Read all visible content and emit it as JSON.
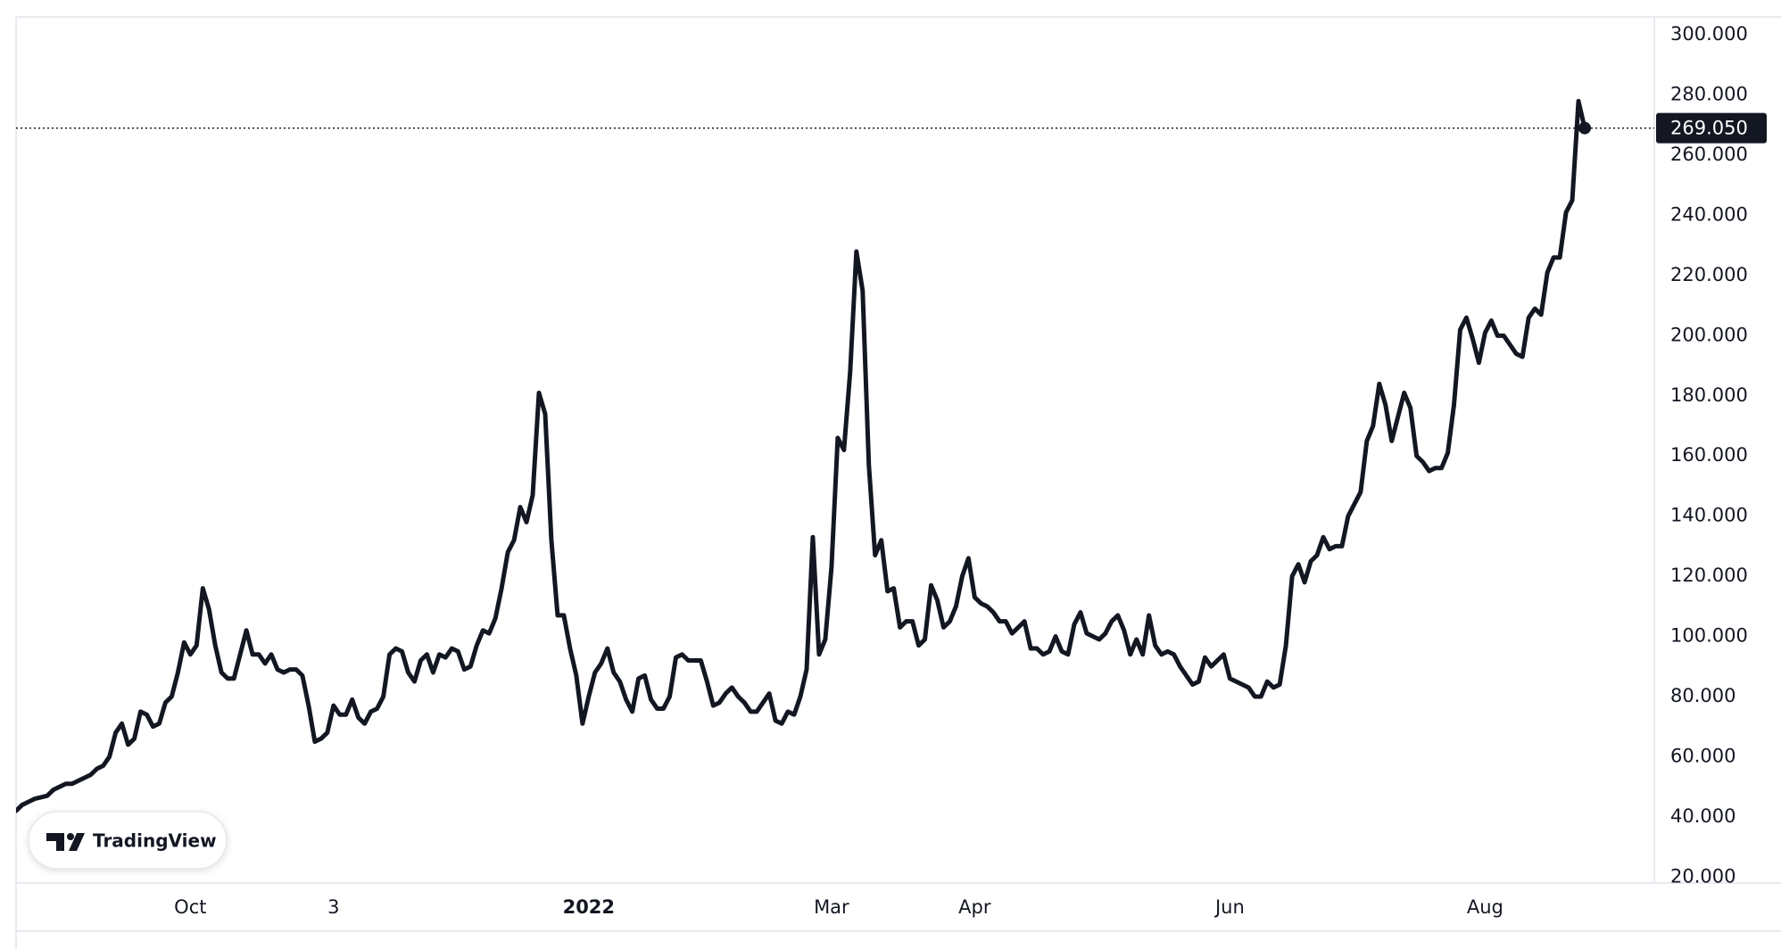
{
  "chart_data": {
    "type": "line",
    "color": "#131722",
    "grid": false,
    "watermark": "TradingView",
    "ylim": [
      18,
      306
    ],
    "yticks": [
      {
        "value": 20,
        "label": "20.000"
      },
      {
        "value": 40,
        "label": "40.000"
      },
      {
        "value": 60,
        "label": "60.000"
      },
      {
        "value": 80,
        "label": "80.000"
      },
      {
        "value": 100,
        "label": "100.000"
      },
      {
        "value": 120,
        "label": "120.000"
      },
      {
        "value": 140,
        "label": "140.000"
      },
      {
        "value": 160,
        "label": "160.000"
      },
      {
        "value": 180,
        "label": "180.000"
      },
      {
        "value": 200,
        "label": "200.000"
      },
      {
        "value": 220,
        "label": "220.000"
      },
      {
        "value": 240,
        "label": "240.000"
      },
      {
        "value": 260,
        "label": "260.000"
      },
      {
        "value": 280,
        "label": "280.000"
      },
      {
        "value": 300,
        "label": "300.000"
      }
    ],
    "last_price": {
      "value": 269.05,
      "label": "269.050"
    },
    "categories": [
      null,
      null,
      null,
      null,
      null,
      null,
      null,
      null,
      null,
      null,
      null,
      null,
      null,
      null,
      null,
      null,
      null,
      null,
      null,
      null,
      null,
      null,
      null,
      null,
      null,
      null,
      null,
      null,
      "Oct",
      null,
      null,
      null,
      null,
      null,
      null,
      null,
      null,
      null,
      null,
      null,
      null,
      null,
      null,
      null,
      null,
      null,
      null,
      null,
      null,
      null,
      null,
      "3",
      null,
      null,
      null,
      null,
      null,
      null,
      null,
      null,
      null,
      null,
      null,
      null,
      null,
      null,
      null,
      null,
      null,
      null,
      null,
      null,
      null,
      null,
      null,
      null,
      null,
      null,
      null,
      null,
      null,
      null,
      null,
      null,
      null,
      null,
      null,
      null,
      null,
      null,
      null,
      null,
      "2022",
      null,
      null,
      null,
      null,
      null,
      null,
      null,
      null,
      null,
      null,
      null,
      null,
      null,
      null,
      null,
      null,
      null,
      null,
      null,
      null,
      null,
      null,
      null,
      null,
      null,
      null,
      null,
      null,
      null,
      null,
      null,
      null,
      null,
      null,
      null,
      null,
      null,
      null,
      "Mar",
      null,
      null,
      null,
      null,
      null,
      null,
      null,
      null,
      null,
      null,
      null,
      null,
      null,
      null,
      null,
      null,
      null,
      null,
      null,
      null,
      null,
      null,
      "Apr",
      null,
      null,
      null,
      null,
      null,
      null,
      null,
      null,
      null,
      null,
      null,
      null,
      null,
      null,
      null,
      null,
      null,
      null,
      null,
      null,
      null,
      null,
      null,
      null,
      null,
      null,
      null,
      null,
      null,
      null,
      null,
      null,
      null,
      null,
      null,
      null,
      null,
      null,
      null,
      null,
      "Jun",
      null,
      null,
      null,
      null,
      null,
      null,
      null,
      null,
      null,
      null,
      null,
      null,
      null,
      null,
      null,
      null,
      null,
      null,
      null,
      null,
      null,
      null,
      null,
      null,
      null,
      null,
      null,
      null,
      null,
      null,
      null,
      null,
      null,
      null,
      null,
      null,
      null,
      null,
      null,
      null,
      "Aug",
      null,
      null,
      null,
      null,
      null,
      null,
      null,
      null,
      null,
      null,
      null,
      null,
      null,
      null,
      null,
      null
    ],
    "bold_categories": [
      "2022"
    ],
    "values": [
      42,
      44,
      45,
      46,
      46.5,
      47,
      49,
      50,
      51,
      51,
      52,
      53,
      54,
      56,
      57,
      60,
      68,
      71,
      64,
      66,
      75,
      74,
      70,
      71,
      78,
      80,
      88,
      98,
      94,
      97,
      116,
      109,
      97,
      88,
      86,
      86,
      94,
      102,
      94,
      94,
      91,
      94,
      89,
      88,
      89,
      89,
      87,
      77,
      65,
      66,
      68,
      77,
      74,
      74,
      79,
      73,
      71,
      75,
      76,
      80,
      94,
      96,
      95,
      88,
      85,
      92,
      94,
      88,
      94,
      93,
      96,
      95,
      89,
      90,
      97,
      102,
      101,
      106,
      116,
      128,
      132,
      143,
      138,
      147,
      181,
      174,
      132,
      107,
      107,
      96,
      87,
      71,
      80,
      88,
      91,
      96,
      88,
      85,
      79,
      75,
      86,
      87,
      79,
      76,
      76,
      80,
      93,
      94,
      92,
      92,
      92,
      85,
      77,
      78,
      81,
      83,
      80,
      78,
      75,
      75,
      78,
      81,
      72,
      71,
      75,
      74,
      80,
      89,
      133,
      94,
      99,
      123,
      166,
      162,
      188,
      228,
      215,
      157,
      127,
      132,
      115,
      116,
      103,
      105,
      105,
      97,
      99,
      117,
      112,
      103,
      105,
      110,
      120,
      126,
      113,
      111,
      110,
      108,
      105,
      105,
      101,
      103,
      105,
      96,
      96,
      94,
      95,
      100,
      95,
      94,
      104,
      108,
      101,
      100,
      99,
      101,
      105,
      107,
      102,
      94,
      99,
      94,
      107,
      97,
      94,
      95,
      94,
      90,
      87,
      84,
      85,
      93,
      90,
      92,
      94,
      86,
      85,
      84,
      83,
      80,
      80,
      85,
      83,
      84,
      97,
      120,
      124,
      118,
      125,
      127,
      133,
      129,
      130,
      130,
      140,
      144,
      148,
      165,
      170,
      184,
      177,
      165,
      173,
      181,
      176,
      160,
      158,
      155,
      156,
      156,
      161,
      177,
      202,
      206,
      199,
      191,
      201,
      205,
      200,
      200,
      197,
      194,
      193,
      206,
      209,
      207,
      221,
      226,
      226,
      241,
      245,
      278,
      269.05
    ]
  }
}
